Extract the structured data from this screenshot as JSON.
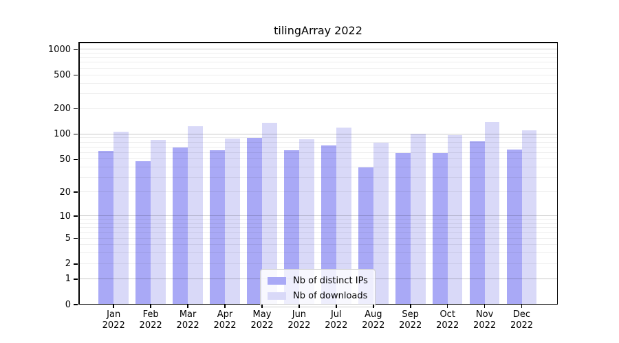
{
  "title": "tilingArray 2022",
  "colors": {
    "ips_bar": "#a9a9f6",
    "downloads_bar": "#d9d9f8",
    "grid_major": "#c9c9c9",
    "grid_minor": "#ededed",
    "spine": "#000000",
    "legend_border": "#cccccc"
  },
  "legend": {
    "items": [
      {
        "label": "Nb of distinct IPs",
        "color_key": "ips_bar"
      },
      {
        "label": "Nb of downloads",
        "color_key": "downloads_bar"
      }
    ]
  },
  "chart_data": {
    "type": "bar",
    "title": "tilingArray 2022",
    "categories": [
      "Jan",
      "Feb",
      "Mar",
      "Apr",
      "May",
      "Jun",
      "Jul",
      "Aug",
      "Sep",
      "Oct",
      "Nov",
      "Dec"
    ],
    "category_year": "2022",
    "series": [
      {
        "name": "Nb of distinct IPs",
        "color": "#a9a9f6",
        "values": [
          63,
          48,
          70,
          64,
          90,
          64,
          73,
          40,
          60,
          60,
          83,
          66
        ]
      },
      {
        "name": "Nb of downloads",
        "color": "#d9d9f8",
        "values": [
          108,
          85,
          124,
          89,
          137,
          87,
          119,
          79,
          102,
          98,
          140,
          111
        ]
      }
    ],
    "xlabel": "",
    "ylabel": "",
    "y_scale": "log10(value + 1)",
    "y_tick_values": [
      0,
      1,
      2,
      5,
      10,
      20,
      50,
      100,
      200,
      500,
      1000
    ],
    "grid": {
      "orientation": "horizontal",
      "major_values": [
        1,
        10,
        100,
        1000
      ],
      "minor_values": [
        2,
        3,
        4,
        5,
        6,
        7,
        8,
        9,
        20,
        30,
        40,
        50,
        60,
        70,
        80,
        90,
        200,
        300,
        400,
        500,
        600,
        700,
        800,
        900
      ]
    },
    "ylim": [
      0,
      1233
    ],
    "legend_position": "lower center"
  }
}
